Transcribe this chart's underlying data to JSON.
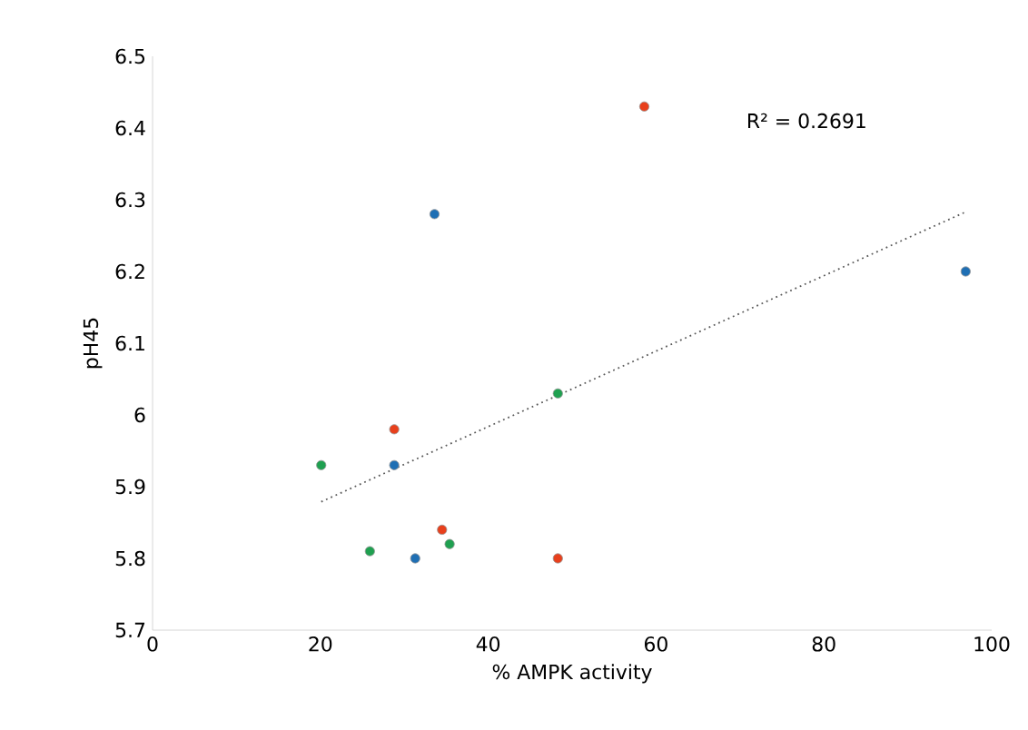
{
  "chart_data": {
    "type": "scatter",
    "xlabel": "% AMPK activity",
    "ylabel": "pH45",
    "annotations": [
      "R² = 0.2691"
    ],
    "xlim": [
      0,
      100
    ],
    "ylim": [
      5.7,
      6.5
    ],
    "xticks": [
      0,
      20,
      40,
      60,
      80,
      100
    ],
    "yticks": [
      5.7,
      5.8,
      5.9,
      {
        "value": 6,
        "label": "6"
      },
      6.1,
      6.2,
      6.3,
      6.4,
      6.5
    ],
    "grid": false,
    "legend": false,
    "series": [
      {
        "color": "#e8401c",
        "marker": "circle",
        "x": [
          58.6,
          28.8,
          34.5,
          48.3
        ],
        "values": [
          6.43,
          5.98,
          5.84,
          5.8
        ]
      },
      {
        "color": "#1f6fb4",
        "marker": "circle",
        "x": [
          33.6,
          28.8,
          31.3,
          96.9
        ],
        "values": [
          6.28,
          5.93,
          5.8,
          6.2
        ]
      },
      {
        "color": "#1fa050",
        "marker": "circle",
        "x": [
          20.1,
          25.9,
          35.4,
          48.3
        ],
        "values": [
          5.93,
          5.81,
          5.82,
          6.03
        ]
      },
      {
        "type": "line",
        "color": "#595959",
        "line_style": "dotted",
        "marker": "none",
        "x": [
          20.1,
          96.7
        ],
        "values": [
          5.879,
          6.282
        ]
      }
    ]
  }
}
